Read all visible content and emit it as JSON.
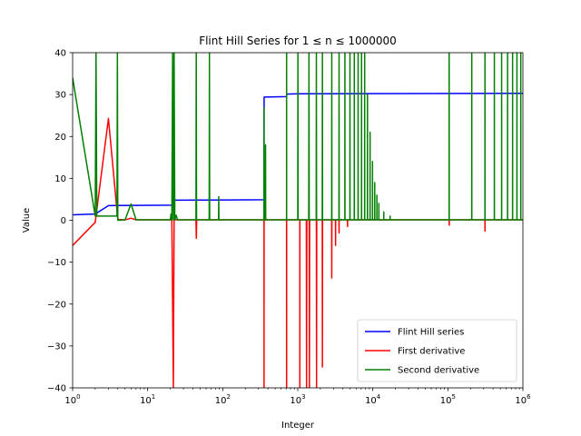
{
  "chart_data": {
    "type": "line",
    "title": "Flint Hill Series for 1 ≤ n ≤ 1000000",
    "xlabel": "Integer",
    "ylabel": "Value",
    "xscale": "log",
    "xlim": [
      1,
      1000000
    ],
    "ylim": [
      -40,
      40
    ],
    "xticks": [
      {
        "value": 1,
        "base": "10",
        "exp": "0"
      },
      {
        "value": 10,
        "base": "10",
        "exp": "1"
      },
      {
        "value": 100,
        "base": "10",
        "exp": "2"
      },
      {
        "value": 1000,
        "base": "10",
        "exp": "3"
      },
      {
        "value": 10000,
        "base": "10",
        "exp": "4"
      },
      {
        "value": 100000,
        "base": "10",
        "exp": "5"
      },
      {
        "value": 1000000,
        "base": "10",
        "exp": "6"
      }
    ],
    "yticks": [
      {
        "value": -40,
        "label": "−40"
      },
      {
        "value": -30,
        "label": "−30"
      },
      {
        "value": -20,
        "label": "−20"
      },
      {
        "value": -10,
        "label": "−10"
      },
      {
        "value": 0,
        "label": "0"
      },
      {
        "value": 10,
        "label": "10"
      },
      {
        "value": 20,
        "label": "20"
      },
      {
        "value": 30,
        "label": "30"
      },
      {
        "value": 40,
        "label": "40"
      }
    ],
    "grid": false,
    "legend_position": "lower-right",
    "series": [
      {
        "name": "Flint Hill series",
        "color": "#0000ff",
        "points": [
          [
            1,
            1.3
          ],
          [
            2,
            1.5
          ],
          [
            3,
            3.5
          ],
          [
            22,
            3.6
          ],
          [
            23,
            4.8
          ],
          [
            355,
            4.9
          ],
          [
            356,
            29.4
          ],
          [
            710,
            29.5
          ],
          [
            711,
            30.1
          ],
          [
            1000,
            30.2
          ],
          [
            1000000,
            30.3
          ]
        ]
      },
      {
        "name": "First derivative",
        "color": "#ff0000",
        "points": [
          [
            1,
            -6
          ],
          [
            2,
            -0.5
          ],
          [
            3,
            24.3
          ],
          [
            4,
            0.2
          ],
          [
            5,
            0.1
          ],
          [
            6,
            0.5
          ],
          [
            7,
            0.1
          ],
          [
            10,
            0.1
          ],
          [
            21,
            0.1
          ],
          [
            22,
            -40
          ],
          [
            22.5,
            0.1
          ],
          [
            44,
            0.1
          ],
          [
            44.5,
            -4.3
          ],
          [
            45,
            0.1
          ],
          [
            355,
            0.1
          ],
          [
            355.5,
            -40
          ],
          [
            356,
            0.1
          ],
          [
            709,
            0.1
          ],
          [
            710,
            -40
          ],
          [
            711,
            0.1
          ],
          [
            1065,
            0.1
          ],
          [
            1066,
            -40
          ],
          [
            1067,
            0.1
          ],
          [
            1300,
            0.1
          ],
          [
            1310,
            -40
          ],
          [
            1320,
            0.1
          ],
          [
            1420,
            0.1
          ],
          [
            1430,
            -40
          ],
          [
            1440,
            0.1
          ],
          [
            1770,
            0.1
          ],
          [
            1780,
            -40
          ],
          [
            1790,
            0.1
          ],
          [
            2120,
            0.1
          ],
          [
            2130,
            -35
          ],
          [
            2140,
            0.1
          ],
          [
            2830,
            0.1
          ],
          [
            2840,
            -13.8
          ],
          [
            2850,
            0.1
          ],
          [
            3180,
            0.1
          ],
          [
            3190,
            -6
          ],
          [
            3200,
            0.1
          ],
          [
            3540,
            0.1
          ],
          [
            3550,
            -3
          ],
          [
            3560,
            0.1
          ],
          [
            4600,
            0.1
          ],
          [
            4610,
            -1.5
          ],
          [
            4620,
            0.1
          ],
          [
            104000,
            0.1
          ],
          [
            104300,
            -1.2
          ],
          [
            104600,
            0.1
          ],
          [
            312000,
            0.1
          ],
          [
            312700,
            -2.6
          ],
          [
            313400,
            0.1
          ],
          [
            1000000,
            0.1
          ]
        ]
      },
      {
        "name": "Second derivative",
        "color": "#008000",
        "points": [
          [
            1,
            34
          ],
          [
            2,
            1
          ],
          [
            2.05,
            40
          ],
          [
            2.1,
            1
          ],
          [
            3,
            1
          ],
          [
            3.9,
            1
          ],
          [
            3.95,
            40
          ],
          [
            4,
            0
          ],
          [
            5,
            0.1
          ],
          [
            6,
            3.9
          ],
          [
            7,
            0.1
          ],
          [
            20,
            0.1
          ],
          [
            20.5,
            1.5
          ],
          [
            21,
            0.1
          ],
          [
            21.5,
            40
          ],
          [
            22,
            0.1
          ],
          [
            22.5,
            40
          ],
          [
            23,
            0.1
          ],
          [
            24,
            1.2
          ],
          [
            25,
            0.1
          ],
          [
            44,
            0.1
          ],
          [
            44.4,
            40
          ],
          [
            44.8,
            0.1
          ],
          [
            66,
            0.1
          ],
          [
            66.5,
            40
          ],
          [
            67,
            0.1
          ],
          [
            88,
            0.1
          ],
          [
            88.5,
            5.6
          ],
          [
            89,
            0.1
          ],
          [
            354,
            0.1
          ],
          [
            355,
            26.8
          ],
          [
            356,
            0.1
          ],
          [
            370,
            0.1
          ],
          [
            372,
            18
          ],
          [
            374,
            0.1
          ],
          [
            709,
            0.1
          ],
          [
            710,
            40
          ],
          [
            711,
            0.1
          ],
          [
            1000,
            0.1
          ],
          [
            1005,
            40
          ],
          [
            1010,
            0.1
          ],
          [
            1400,
            0.1
          ],
          [
            1410,
            40
          ],
          [
            1420,
            0.1
          ],
          [
            1760,
            0.1
          ],
          [
            1770,
            40
          ],
          [
            1780,
            0.1
          ],
          [
            2120,
            0.1
          ],
          [
            2130,
            40
          ],
          [
            2140,
            0.1
          ],
          [
            2830,
            0.1
          ],
          [
            2840,
            40
          ],
          [
            2850,
            0.1
          ],
          [
            3540,
            0.1
          ],
          [
            3550,
            40
          ],
          [
            3560,
            0.1
          ],
          [
            4240,
            0.1
          ],
          [
            4250,
            40
          ],
          [
            4260,
            0.1
          ],
          [
            4950,
            0.1
          ],
          [
            4960,
            40
          ],
          [
            4970,
            0.1
          ],
          [
            5660,
            0.1
          ],
          [
            5670,
            40
          ],
          [
            5680,
            0.1
          ],
          [
            6360,
            0.1
          ],
          [
            6370,
            40
          ],
          [
            6380,
            0.1
          ],
          [
            7070,
            0.1
          ],
          [
            7080,
            40
          ],
          [
            7090,
            0.1
          ],
          [
            7780,
            0.1
          ],
          [
            7790,
            40
          ],
          [
            7800,
            0.1
          ],
          [
            8480,
            0.1
          ],
          [
            8490,
            30
          ],
          [
            8500,
            0.1
          ],
          [
            9190,
            0.1
          ],
          [
            9200,
            21
          ],
          [
            9210,
            0.1
          ],
          [
            9900,
            0.1
          ],
          [
            9910,
            14
          ],
          [
            9920,
            0.1
          ],
          [
            10600,
            0.1
          ],
          [
            10610,
            9
          ],
          [
            10620,
            0.1
          ],
          [
            11320,
            0.1
          ],
          [
            11330,
            6
          ],
          [
            11340,
            0.1
          ],
          [
            12030,
            0.1
          ],
          [
            12040,
            4
          ],
          [
            12050,
            0.1
          ],
          [
            14000,
            0.1
          ],
          [
            14010,
            2
          ],
          [
            14020,
            0.1
          ],
          [
            17000,
            0.1
          ],
          [
            17010,
            1
          ],
          [
            17020,
            0.1
          ],
          [
            103900,
            0.1
          ],
          [
            104100,
            40
          ],
          [
            104300,
            0.1
          ],
          [
            208000,
            0.1
          ],
          [
            208300,
            40
          ],
          [
            208600,
            0.1
          ],
          [
            312000,
            0.1
          ],
          [
            312400,
            40
          ],
          [
            312800,
            0.1
          ],
          [
            416000,
            0.1
          ],
          [
            416500,
            40
          ],
          [
            417000,
            0.1
          ],
          [
            520000,
            0.1
          ],
          [
            520600,
            40
          ],
          [
            521200,
            0.1
          ],
          [
            624000,
            0.1
          ],
          [
            624700,
            40
          ],
          [
            625400,
            0.1
          ],
          [
            728000,
            0.1
          ],
          [
            728800,
            40
          ],
          [
            729600,
            0.1
          ],
          [
            832000,
            0.1
          ],
          [
            832900,
            40
          ],
          [
            833800,
            0.1
          ],
          [
            936000,
            0.1
          ],
          [
            937000,
            40
          ],
          [
            938000,
            0.1
          ],
          [
            1000000,
            0.1
          ]
        ]
      }
    ]
  }
}
